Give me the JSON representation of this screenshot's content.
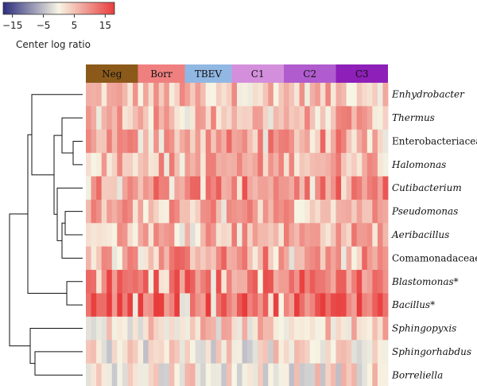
{
  "chart_data": {
    "type": "heatmap",
    "title": "",
    "colorbar": {
      "title": "Center log ratio",
      "ticks": [
        -15,
        -5,
        5,
        15
      ],
      "tick_labels": [
        "−15",
        "−5",
        "5",
        "15"
      ],
      "range": [
        -18,
        18
      ],
      "colors": {
        "low": "#2c2e7e",
        "mid": "#f7f5e4",
        "high": "#e83c3c"
      }
    },
    "column_groups": [
      {
        "label": "Neg",
        "count": 10,
        "color": "#8b5a1a"
      },
      {
        "label": "Borr",
        "count": 9,
        "color": "#f08080"
      },
      {
        "label": "TBEV",
        "count": 9,
        "color": "#91b7e3"
      },
      {
        "label": "C1",
        "count": 10,
        "color": "#d48fdc"
      },
      {
        "label": "C2",
        "count": 10,
        "color": "#b05ccf"
      },
      {
        "label": "C3",
        "count": 10,
        "color": "#8e1fb8"
      }
    ],
    "rows": [
      {
        "label": "Enhydrobacter",
        "italic": true,
        "mean_clr": 5
      },
      {
        "label": "Thermus",
        "italic": true,
        "mean_clr": 6
      },
      {
        "label": "Enterobacteriaceae",
        "italic": false,
        "mean_clr": 8
      },
      {
        "label": "Halomonas",
        "italic": true,
        "mean_clr": 7
      },
      {
        "label": "Cutibacterium",
        "italic": true,
        "mean_clr": 10
      },
      {
        "label": "Pseudomonas",
        "italic": true,
        "mean_clr": 7
      },
      {
        "label": "Aeribacillus",
        "italic": true,
        "mean_clr": 7
      },
      {
        "label": "Comamonadaceae",
        "italic": false,
        "mean_clr": 9
      },
      {
        "label": "Blastomonas*",
        "italic": true,
        "mean_clr": 12
      },
      {
        "label": "Bacillus*",
        "italic": true,
        "mean_clr": 14
      },
      {
        "label": "Sphingopyxis",
        "italic": true,
        "mean_clr": 3
      },
      {
        "label": "Sphingorhabdus",
        "italic": true,
        "mean_clr": 1
      },
      {
        "label": "Borreliella",
        "italic": true,
        "mean_clr": 1
      }
    ]
  }
}
